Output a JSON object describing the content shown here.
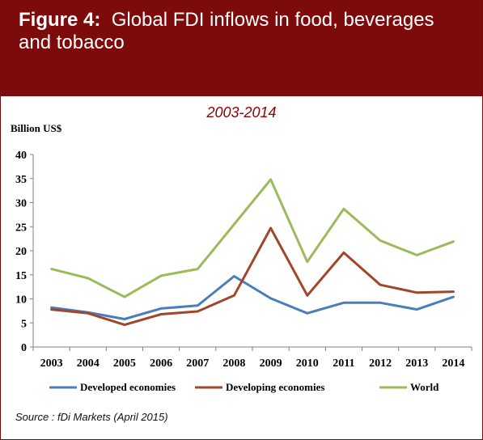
{
  "header": {
    "figure_label": "Figure 4:",
    "title": "Global FDI inflows in food, beverages and tobacco"
  },
  "source": "Source : fDi Markets (April 2015)",
  "colors": {
    "header_bg": "#7d0b0b",
    "developed": "#4a7ebb",
    "developing": "#a0472a",
    "world": "#9bbb59"
  },
  "chart_data": {
    "type": "line",
    "subtitle": "2003-2014",
    "ylabel": "Billion US$",
    "xlabel": "",
    "ylim": [
      0,
      40
    ],
    "yticks": [
      0,
      5,
      10,
      15,
      20,
      25,
      30,
      35,
      40
    ],
    "grid": false,
    "legend_position": "bottom",
    "x": [
      "2003",
      "2004",
      "2005",
      "2006",
      "2007",
      "2008",
      "2009",
      "2010",
      "2011",
      "2012",
      "2013",
      "2014"
    ],
    "series": [
      {
        "name": "Developed economies",
        "color": "#4a7ebb",
        "values": [
          8.2,
          7.2,
          5.8,
          8.0,
          8.6,
          14.7,
          10.1,
          7.0,
          9.2,
          9.2,
          7.8,
          10.4
        ]
      },
      {
        "name": "Developing economies",
        "color": "#a0472a",
        "values": [
          7.8,
          7.0,
          4.6,
          6.8,
          7.4,
          10.7,
          24.7,
          10.7,
          19.6,
          12.9,
          11.3,
          11.5
        ]
      },
      {
        "name": "World",
        "color": "#9bbb59",
        "values": [
          16.2,
          14.3,
          10.4,
          14.8,
          16.2,
          25.5,
          34.8,
          17.7,
          28.7,
          22.1,
          19.1,
          21.9
        ]
      }
    ]
  }
}
